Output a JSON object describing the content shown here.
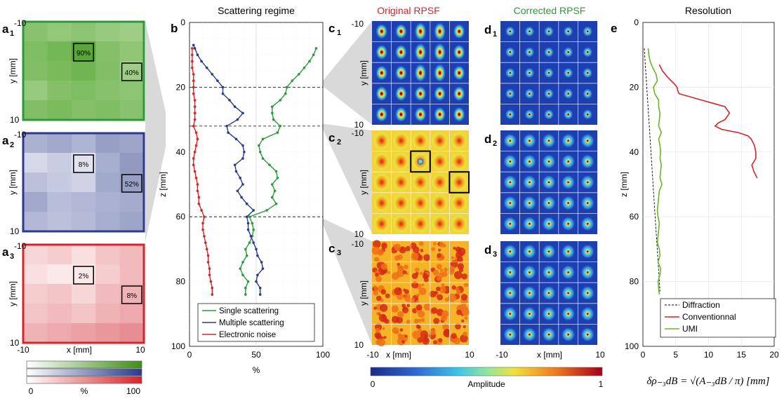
{
  "panels": {
    "a1": {
      "main": "a",
      "sub": "1"
    },
    "a2": {
      "main": "a",
      "sub": "2"
    },
    "a3": {
      "main": "a",
      "sub": "3"
    },
    "b": "b",
    "c1": {
      "main": "c",
      "sub": "1"
    },
    "c2": {
      "main": "c",
      "sub": "2"
    },
    "c3": {
      "main": "c",
      "sub": "3"
    },
    "d1": {
      "main": "d",
      "sub": "1"
    },
    "d2": {
      "main": "d",
      "sub": "2"
    },
    "d3": {
      "main": "d",
      "sub": "3"
    },
    "e": "e"
  },
  "colors": {
    "green": "#2a9a3a",
    "blue": "#2b3a8c",
    "red": "#d8232a",
    "gray_band": "#d9d9d9",
    "psf_bg": "#1d3fb0"
  },
  "chart_data": [
    {
      "id": "a1",
      "type": "heatmap",
      "palette": "green",
      "xlabel": "",
      "ylabel": "y [mm]",
      "ticks_top": "-10",
      "ticks_bottom": "10",
      "grid": [
        [
          55,
          48,
          52,
          45,
          40
        ],
        [
          62,
          70,
          90,
          58,
          50
        ],
        [
          60,
          66,
          72,
          60,
          40
        ],
        [
          45,
          58,
          62,
          56,
          52
        ],
        [
          60,
          65,
          58,
          62,
          55
        ]
      ],
      "boxes": [
        {
          "label": "90%",
          "row": 1,
          "col": 2
        },
        {
          "label": "40%",
          "row": 2,
          "col": 4
        }
      ]
    },
    {
      "id": "a2",
      "type": "heatmap",
      "palette": "blue",
      "xlabel": "",
      "ylabel": "y [mm]",
      "ticks_top": "-10",
      "ticks_bottom": "10",
      "grid": [
        [
          40,
          46,
          38,
          52,
          48
        ],
        [
          14,
          22,
          8,
          42,
          55
        ],
        [
          30,
          24,
          18,
          45,
          52
        ],
        [
          46,
          32,
          36,
          40,
          44
        ],
        [
          36,
          30,
          34,
          42,
          48
        ]
      ],
      "boxes": [
        {
          "label": "8%",
          "row": 1,
          "col": 2
        },
        {
          "label": "52%",
          "row": 2,
          "col": 4
        }
      ]
    },
    {
      "id": "a3",
      "type": "heatmap",
      "palette": "red",
      "xlabel": "x [mm]",
      "ylabel": "y [mm]",
      "ticks_top": "-10",
      "ticks_bottom": "10",
      "xticks": [
        "-10",
        "10"
      ],
      "grid": [
        [
          4,
          5,
          3,
          6,
          7
        ],
        [
          3,
          2,
          2,
          5,
          7
        ],
        [
          5,
          6,
          4,
          7,
          8
        ],
        [
          6,
          7,
          6,
          8,
          9
        ],
        [
          8,
          9,
          10,
          11,
          12
        ]
      ],
      "boxes": [
        {
          "label": "2%",
          "row": 1,
          "col": 2
        },
        {
          "label": "8%",
          "row": 2,
          "col": 4
        }
      ]
    },
    {
      "id": "colorbar_a",
      "type": "heatmap",
      "ticks": [
        "0",
        "%",
        "100"
      ]
    },
    {
      "id": "b",
      "type": "line",
      "title": "Scattering regime",
      "xlabel": "%",
      "ylabel": "z [mm]",
      "xlim": [
        0,
        100
      ],
      "ylim": [
        0,
        100
      ],
      "xticks": [
        0,
        50,
        100
      ],
      "yticks": [
        0,
        20,
        40,
        60,
        80,
        100
      ],
      "dashed_z": [
        20,
        32,
        60
      ],
      "legend_position": "bottom-right",
      "series": [
        {
          "name": "Single scattering",
          "color": "#2a9a3a",
          "z": [
            8,
            10,
            12,
            14,
            16,
            18,
            20,
            22,
            24,
            26,
            28,
            30,
            32,
            34,
            36,
            38,
            40,
            42,
            44,
            46,
            48,
            50,
            52,
            54,
            56,
            58,
            60,
            62,
            64,
            66,
            68,
            70,
            72,
            74,
            76,
            78,
            80,
            82,
            84
          ],
          "x": [
            95,
            93,
            90,
            86,
            82,
            77,
            73,
            72,
            68,
            62,
            62,
            63,
            68,
            66,
            55,
            52,
            53,
            55,
            60,
            65,
            66,
            62,
            64,
            62,
            65,
            58,
            45,
            47,
            48,
            47,
            45,
            42,
            43,
            40,
            38,
            40,
            44,
            42,
            42
          ]
        },
        {
          "name": "Multiple scattering",
          "color": "#2b3a8c",
          "z": [
            7,
            8,
            10,
            12,
            14,
            16,
            18,
            20,
            22,
            24,
            26,
            28,
            30,
            32,
            34,
            36,
            38,
            40,
            42,
            44,
            46,
            48,
            50,
            52,
            54,
            56,
            58,
            60,
            62,
            64,
            66,
            68,
            70,
            72,
            74,
            76,
            78,
            80,
            82,
            84
          ],
          "x": [
            3,
            4,
            6,
            9,
            13,
            17,
            21,
            25,
            25,
            30,
            34,
            40,
            36,
            28,
            29,
            35,
            40,
            41,
            40,
            34,
            35,
            38,
            40,
            36,
            39,
            43,
            48,
            43,
            44,
            44,
            46,
            48,
            50,
            51,
            54,
            55,
            51,
            50,
            53,
            53
          ]
        },
        {
          "name": "Electronic noise",
          "color": "#d8232a",
          "z": [
            8,
            10,
            12,
            14,
            16,
            18,
            20,
            22,
            24,
            26,
            28,
            30,
            32,
            34,
            36,
            38,
            40,
            42,
            44,
            46,
            48,
            50,
            52,
            54,
            56,
            58,
            60,
            62,
            64,
            66,
            68,
            70,
            72,
            74,
            76,
            78,
            80,
            82,
            84
          ],
          "x": [
            2,
            2,
            2,
            2,
            3,
            3,
            3,
            3,
            4,
            4,
            4,
            4,
            3,
            5,
            6,
            5,
            4,
            3,
            3,
            4,
            5,
            6,
            6,
            7,
            7,
            9,
            11,
            10,
            10,
            11,
            12,
            13,
            14,
            14,
            15,
            15,
            16,
            17,
            17
          ]
        }
      ]
    },
    {
      "id": "c",
      "type": "heatmap",
      "title": "Original RPSF",
      "rows": [
        {
          "key": "c1",
          "ylabel": "y [mm]",
          "ticks_top": "-10",
          "ticks_bottom": "10",
          "style": "focused"
        },
        {
          "key": "c2",
          "ylabel": "y [mm]",
          "ticks_top": "-10",
          "ticks_bottom": "10",
          "style": "medium",
          "boxes": [
            {
              "row": 1,
              "col": 2
            },
            {
              "row": 2,
              "col": 4
            }
          ]
        },
        {
          "key": "c3",
          "ylabel": "y [mm]",
          "ticks_top": "-10",
          "ticks_bottom": "10",
          "style": "speckle"
        }
      ],
      "xlabel": "x [mm]",
      "xticks": [
        "-10",
        "0",
        "10"
      ]
    },
    {
      "id": "d",
      "type": "heatmap",
      "title": "Corrected RPSF",
      "xlabel": "x [mm]",
      "xticks": [
        "-10",
        "0",
        "10"
      ]
    },
    {
      "id": "colorbar_c",
      "type": "heatmap",
      "label": "Amplitude",
      "ticks": [
        "0",
        "1"
      ]
    },
    {
      "id": "e",
      "type": "line",
      "title": "Resolution",
      "xlabel": "δρ₋₃dB = √(A₋₃dB / π)  [mm]",
      "ylabel": "z [mm]",
      "xlim": [
        0,
        20
      ],
      "ylim": [
        0,
        100
      ],
      "xticks": [
        0,
        5,
        10,
        15,
        20
      ],
      "yticks": [
        0,
        20,
        40,
        60,
        80,
        100
      ],
      "legend_position": "bottom-left",
      "series": [
        {
          "name": "Diffraction",
          "color": "#000000",
          "dash": true,
          "z": [
            8,
            83
          ],
          "x": [
            0.2,
            2.6
          ]
        },
        {
          "name": "Conventionnal",
          "color": "#d8232a",
          "z": [
            13,
            15,
            17,
            19,
            20,
            21,
            22,
            24,
            26,
            28,
            30,
            31,
            32,
            33,
            34,
            35,
            36,
            38,
            40,
            42,
            44,
            46,
            48
          ],
          "x": [
            2.5,
            3.0,
            3.8,
            4.8,
            5.2,
            5.3,
            5.5,
            9.0,
            12.5,
            13.2,
            12.5,
            11.5,
            11.0,
            12.0,
            14.5,
            16.0,
            16.5,
            17.0,
            17.2,
            17.2,
            16.6,
            16.9,
            17.4
          ]
        },
        {
          "name": "UMI",
          "color": "#6ab42a",
          "z": [
            8,
            10,
            12,
            14,
            16,
            18,
            20,
            22,
            24,
            26,
            28,
            30,
            32,
            34,
            36,
            38,
            40,
            42,
            44,
            46,
            48,
            50,
            52,
            54,
            56,
            58,
            60,
            62,
            64,
            66,
            68,
            70,
            72,
            74,
            76,
            78,
            80,
            82,
            84
          ],
          "x": [
            0.8,
            0.9,
            1.1,
            1.5,
            2.0,
            2.2,
            1.6,
            1.8,
            2.4,
            2.4,
            2.6,
            2.5,
            2.4,
            2.8,
            2.4,
            2.6,
            2.7,
            2.6,
            2.8,
            2.7,
            2.6,
            2.9,
            2.5,
            2.4,
            2.3,
            2.2,
            2.3,
            2.5,
            2.4,
            2.3,
            2.2,
            2.5,
            2.6,
            2.3,
            2.7,
            2.6,
            2.3,
            2.4,
            2.5
          ]
        }
      ]
    }
  ]
}
